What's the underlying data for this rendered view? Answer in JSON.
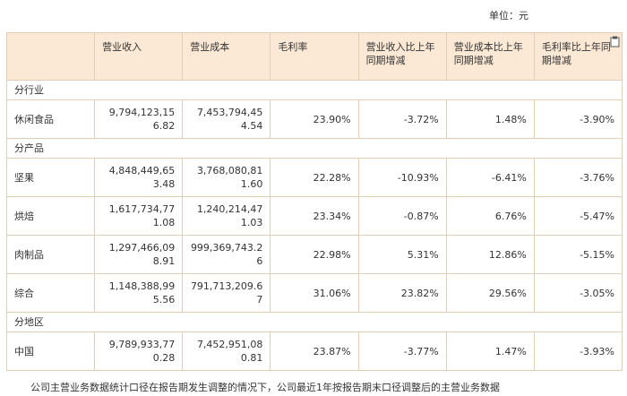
{
  "header": {
    "unit": "单位：元"
  },
  "table": {
    "columns": [
      "",
      "营业收入",
      "营业成本",
      "毛利率",
      "营业收入比上年同期增减",
      "营业成本比上年同期增减",
      "毛利率比上年同期增减"
    ],
    "rows": [
      {
        "section": "分行业"
      },
      {
        "cells": [
          "休闲食品",
          "9,794,123,156.82",
          "7,453,794,454.54",
          "23.90%",
          "-3.72%",
          "1.48%",
          "-3.90%"
        ]
      },
      {
        "section": "分产品"
      },
      {
        "cells": [
          "坚果",
          "4,848,449,653.48",
          "3,768,080,811.60",
          "22.28%",
          "-10.93%",
          "-6.41%",
          "-3.76%"
        ]
      },
      {
        "cells": [
          "烘焙",
          "1,617,734,771.08",
          "1,240,214,471.03",
          "23.34%",
          "-0.87%",
          "6.76%",
          "-5.47%"
        ]
      },
      {
        "cells": [
          "肉制品",
          "1,297,466,098.91",
          "999,369,743.26",
          "22.98%",
          "5.31%",
          "12.86%",
          "-5.15%"
        ]
      },
      {
        "cells": [
          "综合",
          "1,148,388,995.56",
          "791,713,209.67",
          "31.06%",
          "23.82%",
          "29.56%",
          "-3.05%"
        ]
      },
      {
        "section": "分地区"
      },
      {
        "cells": [
          "中国",
          "9,789,933,770.28",
          "7,452,951,080.81",
          "23.87%",
          "-3.77%",
          "1.47%",
          "-3.93%"
        ]
      }
    ]
  },
  "note": "公司主营业务数据统计口径在报告期发生调整的情况下，公司最近1年按报告期末口径调整后的主营业务数据"
}
